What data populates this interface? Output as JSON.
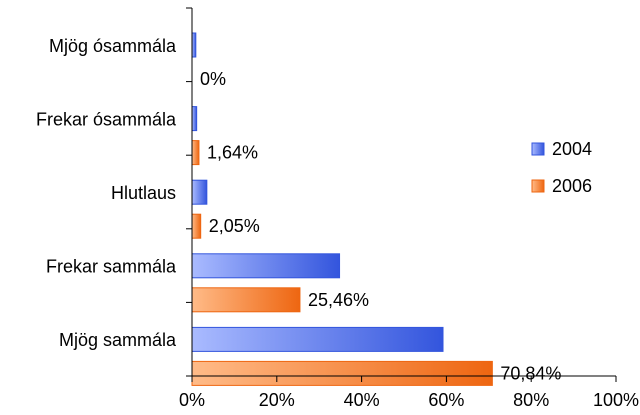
{
  "chart_data": {
    "type": "bar",
    "orientation": "horizontal",
    "categories": [
      "Mjög ósammála",
      "Frekar ósammála",
      "Hlutlaus",
      "Frekar sammála",
      "Mjög sammála"
    ],
    "series": [
      {
        "name": "2004",
        "values": [
          0.9,
          1.1,
          3.5,
          34.8,
          59.2
        ],
        "color": "#3355dd",
        "color_light": "#aabbff",
        "show_data_labels": false
      },
      {
        "name": "2006",
        "values": [
          0,
          1.64,
          2.05,
          25.46,
          70.84
        ],
        "color": "#ee6611",
        "color_light": "#ffbb88",
        "show_data_labels": true,
        "data_labels": [
          "0%",
          "1,64%",
          "2,05%",
          "25,46%",
          "70,84%"
        ]
      }
    ],
    "xlim": [
      0,
      100
    ],
    "xticks": [
      "0%",
      "20%",
      "40%",
      "60%",
      "80%",
      "100%"
    ],
    "grid": false,
    "legend_position": "right",
    "title": "",
    "xlabel": "",
    "ylabel": ""
  }
}
